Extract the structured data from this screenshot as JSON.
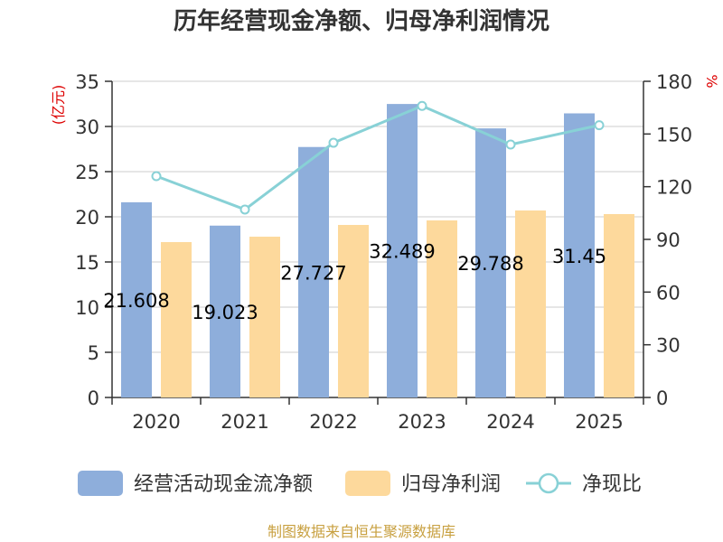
{
  "chart_data": {
    "type": "bar",
    "title": "历年经营现金净额、归母净利润情况",
    "categories": [
      "2020",
      "2021",
      "2022",
      "2023",
      "2024",
      "2025"
    ],
    "y_left": {
      "label": "(亿元)",
      "ylim": [
        0,
        35
      ],
      "ticks": [
        "0",
        "5",
        "10",
        "15",
        "20",
        "25",
        "30",
        "35"
      ]
    },
    "y_right": {
      "label": "%",
      "ylim": [
        0,
        180
      ],
      "ticks": [
        "0",
        "30",
        "60",
        "90",
        "120",
        "150",
        "180"
      ]
    },
    "series": [
      {
        "name": "经营活动现金流净额",
        "type": "bar",
        "axis": "left",
        "color": "#8eaedb",
        "values": [
          21.608,
          19.023,
          27.727,
          32.489,
          29.788,
          31.45
        ],
        "labels": [
          "21.608",
          "19.023",
          "27.727",
          "32.489",
          "29.788",
          "31.45"
        ]
      },
      {
        "name": "归母净利润",
        "type": "bar",
        "axis": "left",
        "color": "#fdd99c",
        "values": [
          17.2,
          17.8,
          19.1,
          19.6,
          20.7,
          20.3
        ]
      },
      {
        "name": "净现比",
        "type": "line",
        "axis": "right",
        "color": "#88d1d6",
        "values": [
          126,
          107,
          145,
          166,
          144,
          155
        ]
      }
    ],
    "grid": true,
    "legend_position": "bottom",
    "axis_label_color": "#dd0000"
  },
  "source_text": "制图数据来自恒生聚源数据库",
  "source_color": "#c8a040"
}
